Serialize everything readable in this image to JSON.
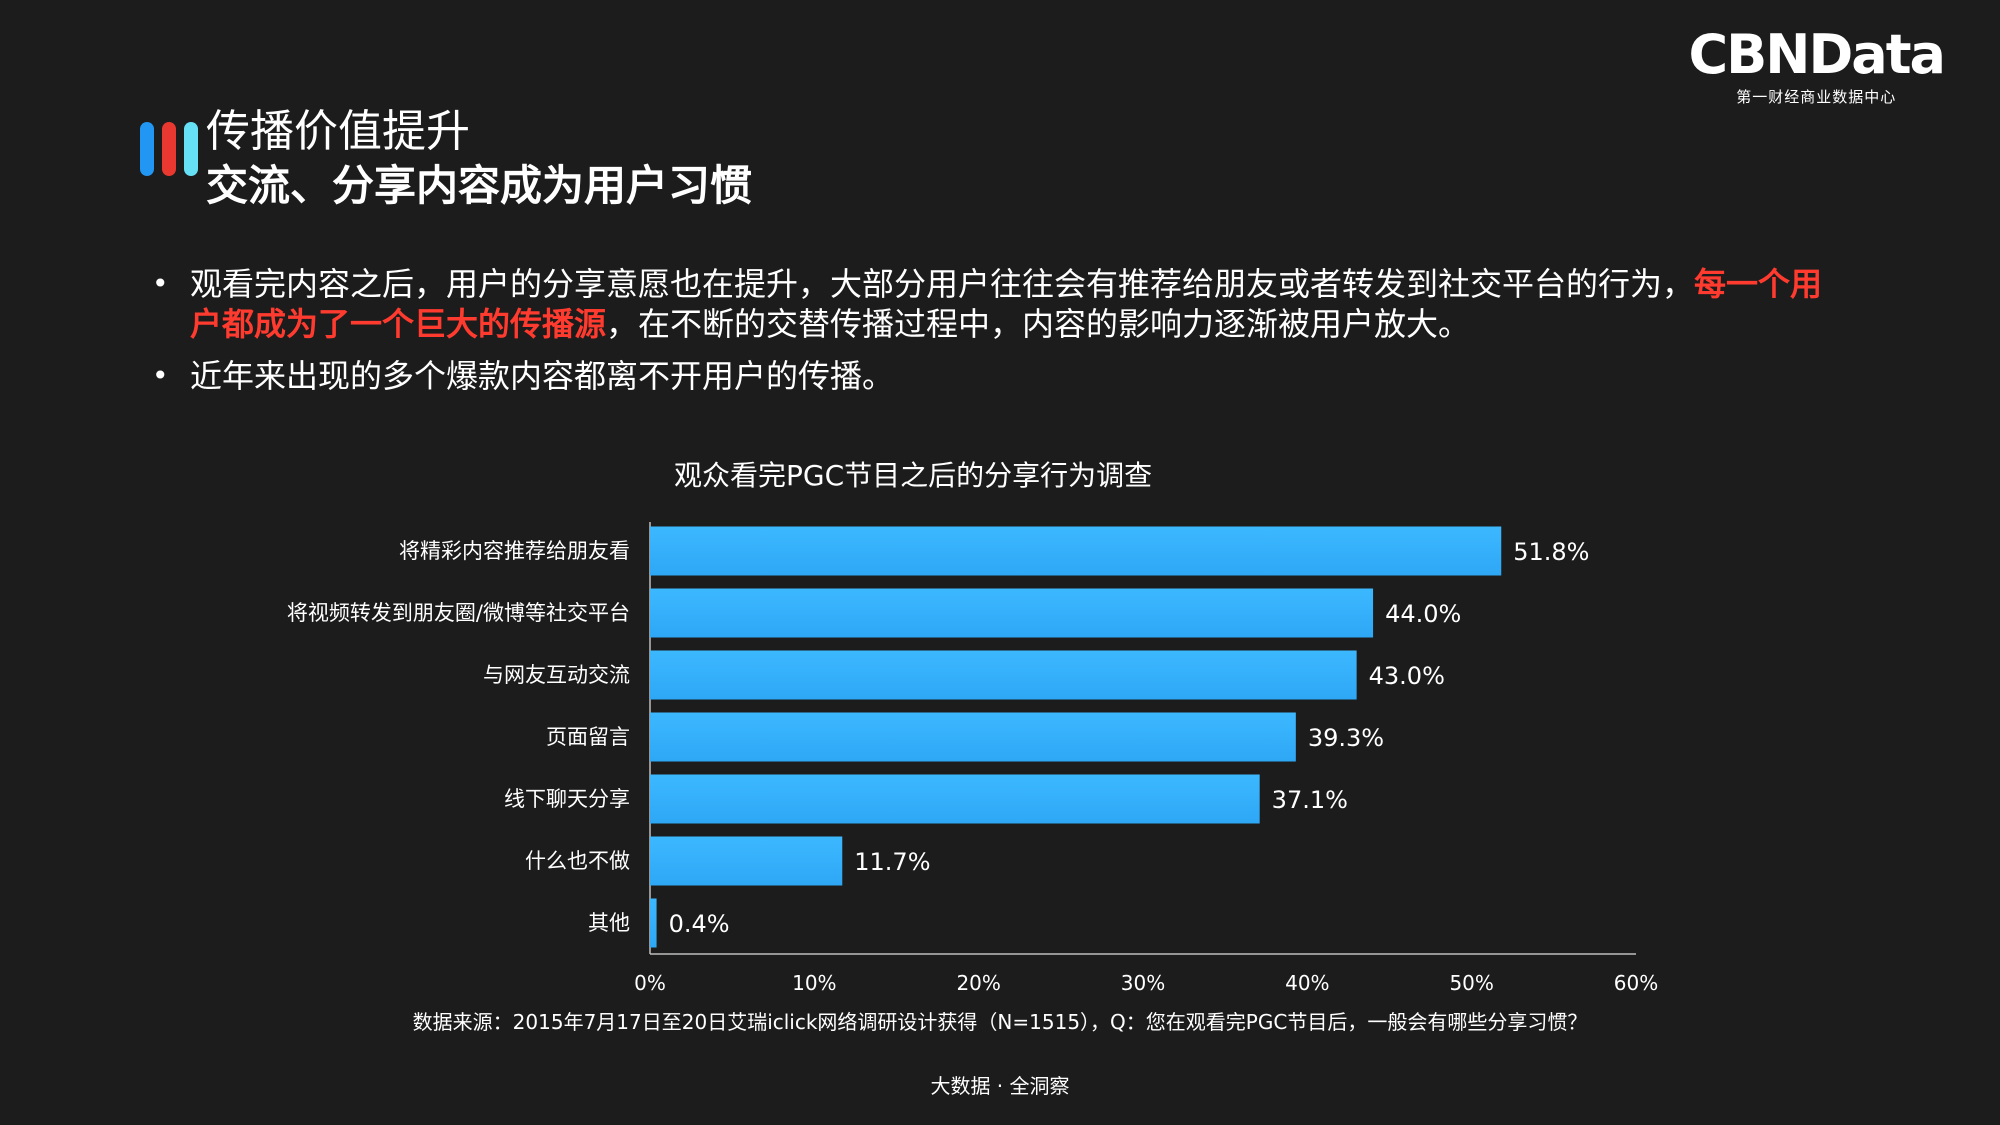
{
  "logo": {
    "main": "CBNData",
    "sub": "第一财经商业数据中心"
  },
  "title": {
    "line1": "传播价值提升",
    "line2": "交流、分享内容成为用户习惯"
  },
  "bullets": {
    "b1_text1": "观看完内容之后，用户的分享意愿也在提升，大部分用户往往会有推荐给朋友或者转发到社交平台的行为，",
    "b1_highlight": "每一个用户都成为了一个巨大的传播源",
    "b1_text2": "，在不断的交替传播过程中，内容的影响力逐渐被用户放大。",
    "b2_text": "近年来出现的多个爆款内容都离不开用户的传播。"
  },
  "colors": {
    "bar": "#2ea7f5",
    "highlight": "#ff3b2f",
    "background": "#1c1c1c"
  },
  "chart_data": {
    "type": "bar",
    "orientation": "horizontal",
    "title": "观众看完PGC节目之后的分享行为调查",
    "categories": [
      "将精彩内容推荐给朋友看",
      "将视频转发到朋友圈/微博等社交平台",
      "与网友互动交流",
      "页面留言",
      "线下聊天分享",
      "什么也不做",
      "其他"
    ],
    "values": [
      51.8,
      44.0,
      43.0,
      39.3,
      37.1,
      11.7,
      0.4
    ],
    "value_labels": [
      "51.8%",
      "44.0%",
      "43.0%",
      "39.3%",
      "37.1%",
      "11.7%",
      "0.4%"
    ],
    "xlim": [
      0,
      60
    ],
    "ticks": [
      0,
      10,
      20,
      30,
      40,
      50,
      60
    ],
    "tick_labels": [
      "0%",
      "10%",
      "20%",
      "30%",
      "40%",
      "50%",
      "60%"
    ],
    "grid": false
  },
  "footnote": "数据来源：2015年7月17日至20日艾瑞iclick网络调研设计获得（N=1515），Q：您在观看完PGC节目后，一般会有哪些分享习惯？",
  "tagline": "大数据 · 全洞察"
}
